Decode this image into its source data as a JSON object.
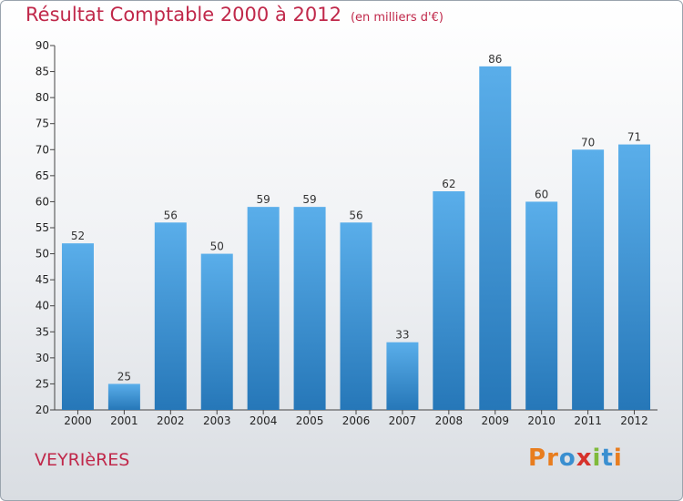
{
  "title": "Résultat Comptable 2000 à 2012",
  "subtitle": "(en milliers d'€)",
  "town": "VEYRIèRES",
  "logo": {
    "text": "Proxiti",
    "letters": [
      {
        "ch": "P",
        "color": "#e87d1e"
      },
      {
        "ch": "r",
        "color": "#e87d1e"
      },
      {
        "ch": "o",
        "color": "#3a8fd0"
      },
      {
        "ch": "x",
        "color": "#d6322b"
      },
      {
        "ch": "i",
        "color": "#7fba3a"
      },
      {
        "ch": "t",
        "color": "#3a8fd0"
      },
      {
        "ch": "i",
        "color": "#e87d1e"
      }
    ]
  },
  "colors": {
    "bar_top": "#5aaeea",
    "bar_bottom": "#2677b8",
    "title": "#c0284a"
  },
  "chart_data": {
    "type": "bar",
    "title": "Résultat Comptable 2000 à 2012",
    "xlabel": "",
    "ylabel": "",
    "categories": [
      "2000",
      "2001",
      "2002",
      "2003",
      "2004",
      "2005",
      "2006",
      "2007",
      "2008",
      "2009",
      "2010",
      "2011",
      "2012"
    ],
    "values": [
      52,
      25,
      56,
      50,
      59,
      59,
      56,
      33,
      62,
      86,
      60,
      70,
      71
    ],
    "ylim": [
      20,
      90
    ],
    "yticks": [
      20,
      25,
      30,
      35,
      40,
      45,
      50,
      55,
      60,
      65,
      70,
      75,
      80,
      85,
      90
    ],
    "grid": false
  }
}
